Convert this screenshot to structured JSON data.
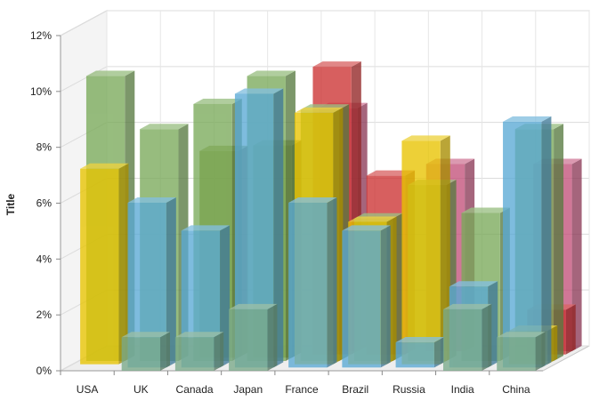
{
  "chart_data": {
    "type": "bar",
    "title": "",
    "xlabel": "",
    "ylabel": "Title",
    "ylim": [
      0,
      12
    ],
    "y_ticks": [
      "0%",
      "2%",
      "4%",
      "6%",
      "8%",
      "10%",
      "12%"
    ],
    "grid": true,
    "style": "3d-clustered-transparent",
    "categories": [
      "USA",
      "UK",
      "Canada",
      "Japan",
      "France",
      "Brazil",
      "Russia",
      "India",
      "China"
    ],
    "series": [
      {
        "color": "#c3517a",
        "values": [
          0,
          0,
          0,
          0,
          8.7,
          0,
          6.7,
          0,
          6.7
        ]
      },
      {
        "color": "#cc3333",
        "values": [
          0,
          0,
          0,
          0,
          10.3,
          6.4,
          0,
          0,
          1.6
        ]
      },
      {
        "color": "#7a8a2a",
        "values": [
          0,
          0,
          7.4,
          7.6,
          0,
          0,
          0,
          0,
          0
        ]
      },
      {
        "color": "#7aaa5a",
        "values": [
          10.2,
          8.3,
          9.2,
          10.2,
          9.0,
          5.1,
          6.3,
          5.3,
          8.3
        ]
      },
      {
        "color": "#e8c400",
        "values": [
          7.0,
          0,
          0,
          0,
          9.0,
          5.1,
          8.0,
          0,
          1.2
        ]
      },
      {
        "color": "#5aaad5",
        "values": [
          0,
          5.9,
          4.9,
          9.8,
          5.9,
          4.9,
          0.9,
          2.9,
          8.8
        ]
      },
      {
        "color": "#7aaa8a",
        "values": [
          0,
          1.2,
          1.2,
          2.2,
          0,
          0,
          0,
          2.2,
          1.2
        ]
      }
    ]
  }
}
